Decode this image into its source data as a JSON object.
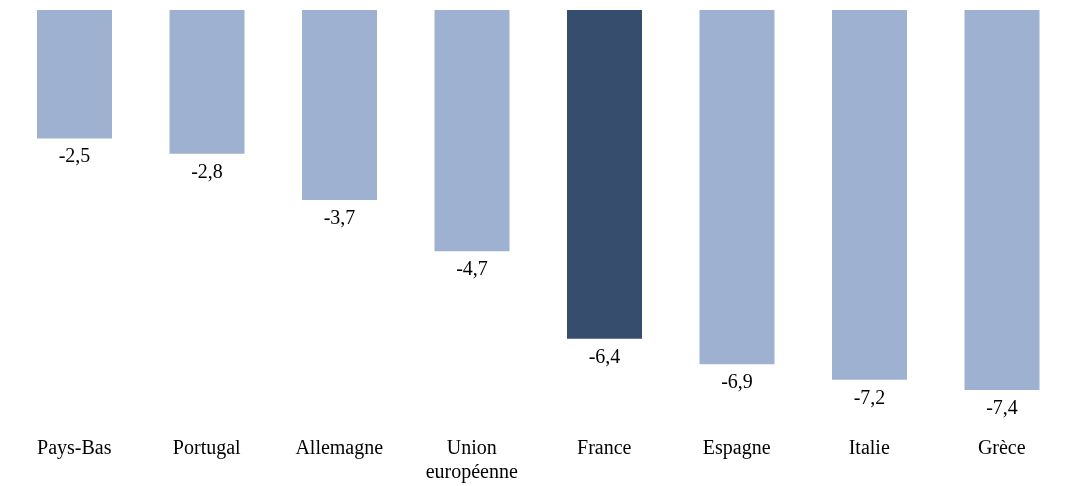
{
  "chart_data": {
    "type": "bar",
    "categories": [
      "Pays-Bas",
      "Portugal",
      "Allemagne",
      "Union européenne",
      "France",
      "Espagne",
      "Italie",
      "Grèce"
    ],
    "values": [
      -2.5,
      -2.8,
      -3.7,
      -4.7,
      -6.4,
      -6.9,
      -7.2,
      -7.4
    ],
    "colors": [
      "#9fb1d0",
      "#9fb1d0",
      "#9fb1d0",
      "#9fb1d0",
      "#374d6e",
      "#9fb1d0",
      "#9fb1d0",
      "#9fb1d0"
    ],
    "value_labels": [
      "-2,5",
      "-2,8",
      "-3,7",
      "-4,7",
      "-6,4",
      "-6,9",
      "-7,2",
      "-7,4"
    ]
  }
}
